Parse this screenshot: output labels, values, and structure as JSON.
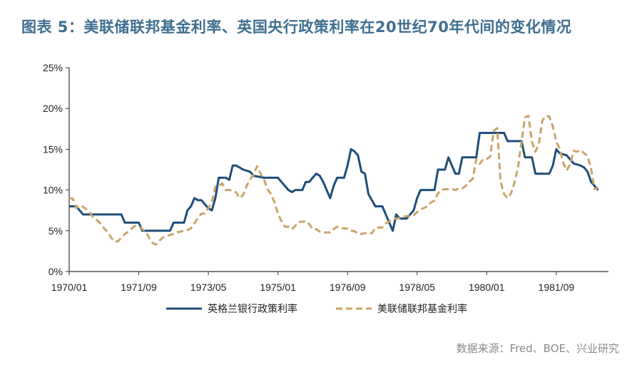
{
  "title": "图表 5：美联储联邦基金利率、英国央行政策利率在20世纪70年代间的变化情况",
  "source": "数据来源：Fred、BOE、兴业研究",
  "chart_data": {
    "type": "line",
    "title": "图表 5：美联储联邦基金利率、英国央行政策利率在20世纪70年代间的变化情况",
    "xlabel": "",
    "ylabel": "",
    "ylim": [
      0,
      25
    ],
    "yticks": [
      "0%",
      "5%",
      "10%",
      "15%",
      "20%",
      "25%"
    ],
    "xticks": [
      "1970/01",
      "1971/09",
      "1973/05",
      "1975/01",
      "1976/09",
      "1978/05",
      "1980/01",
      "1981/09"
    ],
    "x_range": [
      "1970/01",
      "1982/12"
    ],
    "legend_position": "bottom",
    "grid": false,
    "series": [
      {
        "name": "英格兰银行政策利率",
        "color": "#1f4e79",
        "style": "solid",
        "points": [
          [
            "1970/01",
            8.0
          ],
          [
            "1970/03",
            8.0
          ],
          [
            "1970/04",
            7.5
          ],
          [
            "1970/05",
            7.0
          ],
          [
            "1971/04",
            7.0
          ],
          [
            "1971/05",
            6.0
          ],
          [
            "1971/09",
            6.0
          ],
          [
            "1971/10",
            5.0
          ],
          [
            "1972/06",
            5.0
          ],
          [
            "1972/07",
            6.0
          ],
          [
            "1972/10",
            6.0
          ],
          [
            "1972/11",
            7.5
          ],
          [
            "1972/12",
            8.0
          ],
          [
            "1973/01",
            9.0
          ],
          [
            "1973/02",
            8.75
          ],
          [
            "1973/03",
            8.75
          ],
          [
            "1973/04",
            8.25
          ],
          [
            "1973/05",
            7.75
          ],
          [
            "1973/06",
            7.5
          ],
          [
            "1973/07",
            9.0
          ],
          [
            "1973/08",
            11.5
          ],
          [
            "1973/10",
            11.5
          ],
          [
            "1973/11",
            11.25
          ],
          [
            "1973/12",
            13.0
          ],
          [
            "1974/01",
            13.0
          ],
          [
            "1974/02",
            12.75
          ],
          [
            "1974/03",
            12.5
          ],
          [
            "1974/05",
            12.25
          ],
          [
            "1974/06",
            11.75
          ],
          [
            "1974/09",
            11.5
          ],
          [
            "1975/01",
            11.5
          ],
          [
            "1975/02",
            11.0
          ],
          [
            "1975/03",
            10.5
          ],
          [
            "1975/04",
            10.0
          ],
          [
            "1975/05",
            9.75
          ],
          [
            "1975/06",
            10.0
          ],
          [
            "1975/08",
            10.0
          ],
          [
            "1975/09",
            11.0
          ],
          [
            "1975/10",
            11.0
          ],
          [
            "1975/11",
            11.5
          ],
          [
            "1975/12",
            12.0
          ],
          [
            "1976/01",
            11.75
          ],
          [
            "1976/02",
            11.0
          ],
          [
            "1976/03",
            10.0
          ],
          [
            "1976/04",
            9.0
          ],
          [
            "1976/05",
            10.5
          ],
          [
            "1976/06",
            11.5
          ],
          [
            "1976/08",
            11.5
          ],
          [
            "1976/09",
            13.0
          ],
          [
            "1976/10",
            15.0
          ],
          [
            "1976/11",
            14.75
          ],
          [
            "1976/12",
            14.25
          ],
          [
            "1977/01",
            12.25
          ],
          [
            "1977/02",
            12.0
          ],
          [
            "1977/03",
            9.5
          ],
          [
            "1977/04",
            8.75
          ],
          [
            "1977/05",
            8.0
          ],
          [
            "1977/07",
            8.0
          ],
          [
            "1977/08",
            7.0
          ],
          [
            "1977/09",
            6.0
          ],
          [
            "1977/10",
            5.0
          ],
          [
            "1977/11",
            7.0
          ],
          [
            "1977/12",
            6.5
          ],
          [
            "1978/01",
            6.5
          ],
          [
            "1978/02",
            6.5
          ],
          [
            "1978/04",
            7.5
          ],
          [
            "1978/05",
            9.0
          ],
          [
            "1978/06",
            10.0
          ],
          [
            "1978/10",
            10.0
          ],
          [
            "1978/11",
            12.5
          ],
          [
            "1979/01",
            12.5
          ],
          [
            "1979/02",
            14.0
          ],
          [
            "1979/03",
            13.0
          ],
          [
            "1979/04",
            12.0
          ],
          [
            "1979/05",
            12.0
          ],
          [
            "1979/06",
            14.0
          ],
          [
            "1979/10",
            14.0
          ],
          [
            "1979/11",
            17.0
          ],
          [
            "1980/06",
            17.0
          ],
          [
            "1980/07",
            16.0
          ],
          [
            "1980/11",
            16.0
          ],
          [
            "1980/12",
            14.0
          ],
          [
            "1981/02",
            14.0
          ],
          [
            "1981/03",
            12.0
          ],
          [
            "1981/07",
            12.0
          ],
          [
            "1981/08",
            13.0
          ],
          [
            "1981/09",
            15.0
          ],
          [
            "1981/10",
            14.5
          ],
          [
            "1981/12",
            14.25
          ],
          [
            "1982/01",
            13.75
          ],
          [
            "1982/02",
            13.25
          ],
          [
            "1982/04",
            13.0
          ],
          [
            "1982/05",
            12.75
          ],
          [
            "1982/06",
            12.25
          ],
          [
            "1982/07",
            11.0
          ],
          [
            "1982/08",
            10.5
          ],
          [
            "1982/09",
            10.0
          ]
        ]
      },
      {
        "name": "美联储联邦基金利率",
        "color": "#c9a46a",
        "style": "dashed",
        "points": [
          [
            "1970/01",
            9.0
          ],
          [
            "1970/02",
            8.95
          ],
          [
            "1970/03",
            7.8
          ],
          [
            "1970/04",
            8.1
          ],
          [
            "1970/05",
            7.95
          ],
          [
            "1970/06",
            7.6
          ],
          [
            "1970/07",
            7.2
          ],
          [
            "1970/08",
            6.6
          ],
          [
            "1970/09",
            6.3
          ],
          [
            "1970/10",
            5.9
          ],
          [
            "1970/11",
            5.3
          ],
          [
            "1970/12",
            4.9
          ],
          [
            "1971/01",
            4.2
          ],
          [
            "1971/02",
            3.7
          ],
          [
            "1971/03",
            3.7
          ],
          [
            "1971/04",
            4.2
          ],
          [
            "1971/05",
            4.6
          ],
          [
            "1971/06",
            4.9
          ],
          [
            "1971/07",
            5.3
          ],
          [
            "1971/08",
            5.6
          ],
          [
            "1971/09",
            5.5
          ],
          [
            "1971/10",
            5.2
          ],
          [
            "1971/11",
            4.9
          ],
          [
            "1971/12",
            4.1
          ],
          [
            "1972/01",
            3.5
          ],
          [
            "1972/02",
            3.3
          ],
          [
            "1972/03",
            3.8
          ],
          [
            "1972/04",
            4.2
          ],
          [
            "1972/05",
            4.3
          ],
          [
            "1972/06",
            4.5
          ],
          [
            "1972/07",
            4.6
          ],
          [
            "1972/08",
            4.8
          ],
          [
            "1972/09",
            4.9
          ],
          [
            "1972/10",
            5.0
          ],
          [
            "1972/11",
            5.1
          ],
          [
            "1972/12",
            5.3
          ],
          [
            "1973/01",
            5.9
          ],
          [
            "1973/02",
            6.6
          ],
          [
            "1973/03",
            7.1
          ],
          [
            "1973/04",
            7.1
          ],
          [
            "1973/05",
            7.8
          ],
          [
            "1973/06",
            8.5
          ],
          [
            "1973/07",
            10.4
          ],
          [
            "1973/08",
            10.5
          ],
          [
            "1973/09",
            10.8
          ],
          [
            "1973/10",
            10.0
          ],
          [
            "1973/11",
            10.0
          ],
          [
            "1973/12",
            9.9
          ],
          [
            "1974/01",
            9.7
          ],
          [
            "1974/02",
            9.0
          ],
          [
            "1974/03",
            9.4
          ],
          [
            "1974/04",
            10.5
          ],
          [
            "1974/05",
            11.3
          ],
          [
            "1974/06",
            11.9
          ],
          [
            "1974/07",
            12.9
          ],
          [
            "1974/08",
            12.0
          ],
          [
            "1974/09",
            11.3
          ],
          [
            "1974/10",
            10.1
          ],
          [
            "1974/11",
            9.5
          ],
          [
            "1974/12",
            8.5
          ],
          [
            "1975/01",
            7.1
          ],
          [
            "1975/02",
            6.2
          ],
          [
            "1975/03",
            5.5
          ],
          [
            "1975/04",
            5.5
          ],
          [
            "1975/05",
            5.2
          ],
          [
            "1975/06",
            5.6
          ],
          [
            "1975/07",
            6.1
          ],
          [
            "1975/08",
            6.1
          ],
          [
            "1975/09",
            6.2
          ],
          [
            "1975/10",
            5.8
          ],
          [
            "1975/11",
            5.2
          ],
          [
            "1975/12",
            5.2
          ],
          [
            "1976/01",
            4.9
          ],
          [
            "1976/02",
            4.8
          ],
          [
            "1976/03",
            4.8
          ],
          [
            "1976/04",
            4.8
          ],
          [
            "1976/05",
            5.2
          ],
          [
            "1976/06",
            5.5
          ],
          [
            "1976/07",
            5.3
          ],
          [
            "1976/08",
            5.3
          ],
          [
            "1976/09",
            5.25
          ],
          [
            "1976/10",
            5.0
          ],
          [
            "1976/11",
            4.95
          ],
          [
            "1976/12",
            4.65
          ],
          [
            "1977/01",
            4.6
          ],
          [
            "1977/02",
            4.7
          ],
          [
            "1977/03",
            4.7
          ],
          [
            "1977/04",
            4.7
          ],
          [
            "1977/05",
            5.35
          ],
          [
            "1977/06",
            5.4
          ],
          [
            "1977/07",
            5.4
          ],
          [
            "1977/08",
            5.9
          ],
          [
            "1977/09",
            6.15
          ],
          [
            "1977/10",
            6.45
          ],
          [
            "1977/11",
            6.5
          ],
          [
            "1977/12",
            6.55
          ],
          [
            "1978/01",
            6.7
          ],
          [
            "1978/02",
            6.8
          ],
          [
            "1978/03",
            6.8
          ],
          [
            "1978/04",
            6.9
          ],
          [
            "1978/05",
            7.3
          ],
          [
            "1978/06",
            7.6
          ],
          [
            "1978/07",
            7.8
          ],
          [
            "1978/08",
            8.0
          ],
          [
            "1978/09",
            8.5
          ],
          [
            "1978/10",
            8.7
          ],
          [
            "1978/11",
            9.6
          ],
          [
            "1978/12",
            10.0
          ],
          [
            "1979/01",
            10.1
          ],
          [
            "1979/02",
            10.1
          ],
          [
            "1979/03",
            10.1
          ],
          [
            "1979/04",
            10.0
          ],
          [
            "1979/05",
            10.2
          ],
          [
            "1979/06",
            10.2
          ],
          [
            "1979/07",
            10.5
          ],
          [
            "1979/08",
            11.0
          ],
          [
            "1979/09",
            11.4
          ],
          [
            "1979/10",
            13.8
          ],
          [
            "1979/11",
            13.2
          ],
          [
            "1979/12",
            13.8
          ],
          [
            "1980/01",
            13.8
          ],
          [
            "1980/02",
            14.1
          ],
          [
            "1980/03",
            17.2
          ],
          [
            "1980/04",
            17.6
          ],
          [
            "1980/05",
            11.0
          ],
          [
            "1980/06",
            9.5
          ],
          [
            "1980/07",
            9.0
          ],
          [
            "1980/08",
            9.6
          ],
          [
            "1980/09",
            10.9
          ],
          [
            "1980/10",
            12.8
          ],
          [
            "1980/11",
            15.9
          ],
          [
            "1980/12",
            18.9
          ],
          [
            "1981/01",
            19.1
          ],
          [
            "1981/02",
            15.9
          ],
          [
            "1981/03",
            14.7
          ],
          [
            "1981/04",
            15.7
          ],
          [
            "1981/05",
            18.5
          ],
          [
            "1981/06",
            19.1
          ],
          [
            "1981/07",
            19.0
          ],
          [
            "1981/08",
            17.8
          ],
          [
            "1981/09",
            15.9
          ],
          [
            "1981/10",
            15.1
          ],
          [
            "1981/11",
            13.3
          ],
          [
            "1981/12",
            12.4
          ],
          [
            "1982/01",
            13.2
          ],
          [
            "1982/02",
            14.8
          ],
          [
            "1982/03",
            14.7
          ],
          [
            "1982/04",
            14.9
          ],
          [
            "1982/05",
            14.5
          ],
          [
            "1982/06",
            14.2
          ],
          [
            "1982/07",
            12.6
          ],
          [
            "1982/08",
            10.1
          ],
          [
            "1982/09",
            10.3
          ]
        ]
      }
    ]
  }
}
